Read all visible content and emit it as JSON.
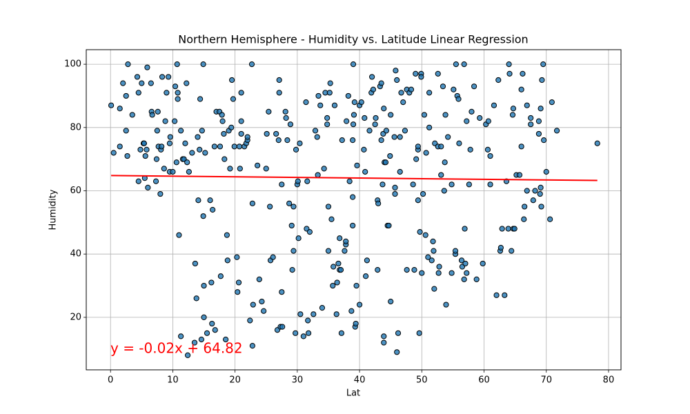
{
  "chart_data": {
    "type": "scatter",
    "title": "Northern Hemisphere - Humidity vs. Latitude Linear Regression",
    "x_label": "Lat",
    "y_label": "Humidity",
    "annotation": "y = -0.02x + 64.82",
    "xlim": [
      -3.9,
      82.0
    ],
    "ylim": [
      3.4,
      104.6
    ],
    "xticks": [
      0,
      10,
      20,
      30,
      40,
      50,
      60,
      70,
      80
    ],
    "yticks": [
      20,
      40,
      60,
      80,
      100
    ],
    "grid": true,
    "series": [
      {
        "color": "#1f77b4",
        "edgecolor": "black",
        "x": [
          0.1,
          0.5,
          1.5,
          1.5,
          2,
          2.5,
          2.5,
          2.7,
          2.8,
          3.5,
          4.3,
          4.5,
          4.5,
          4.8,
          5,
          5.3,
          5.4,
          5.5,
          5.6,
          5.8,
          5.9,
          6,
          6.5,
          6.6,
          6.7,
          7.3,
          7.4,
          7.5,
          7.6,
          7.7,
          8,
          8.1,
          8.2,
          8.3,
          8.6,
          8.8,
          9,
          9.3,
          9.5,
          9.6,
          9.5,
          10,
          10.3,
          10.4,
          10.6,
          10.7,
          10.8,
          10.8,
          11,
          11.3,
          11.3,
          11.6,
          11.8,
          12,
          12.2,
          12.3,
          12.4,
          12.6,
          13.1,
          13.5,
          13.6,
          13.8,
          14,
          14.1,
          14.3,
          14.4,
          14.6,
          14.7,
          14.9,
          14.9,
          15,
          15,
          15.2,
          15.5,
          16,
          16.2,
          16.3,
          16.4,
          16.7,
          16.8,
          17,
          17.5,
          17.6,
          17.7,
          17.9,
          18,
          18.2,
          18.3,
          18.5,
          18.7,
          18.8,
          19,
          19.2,
          19.4,
          19.5,
          19.7,
          19.9,
          20.3,
          20.4,
          20.6,
          20.7,
          20.8,
          21,
          21,
          21,
          21.5,
          21.8,
          22,
          22,
          22.4,
          22.7,
          22.8,
          22.9,
          22.8,
          23.6,
          23.9,
          24.3,
          24.6,
          25,
          25.1,
          25.4,
          25.7,
          25.6,
          26.1,
          26.6,
          26.8,
          27,
          27.1,
          27.1,
          27.3,
          27.5,
          27.5,
          27.6,
          28.1,
          28.2,
          28.4,
          28.7,
          28.9,
          29.1,
          29.2,
          29.4,
          29.4,
          29.7,
          29.8,
          30,
          30.1,
          30.2,
          30.4,
          30.5,
          31,
          31.4,
          31.5,
          31.6,
          31.7,
          31.8,
          32,
          32.6,
          32.9,
          33.2,
          33.3,
          33.4,
          33.7,
          34,
          34.3,
          34.5,
          34.8,
          34.8,
          35,
          35,
          35.2,
          35.3,
          35.5,
          35.7,
          35.8,
          36,
          36.3,
          36.4,
          36.6,
          36.8,
          36.8,
          37,
          37.1,
          37.2,
          37.6,
          37.8,
          37.8,
          37.9,
          38.2,
          38.4,
          38.7,
          38.9,
          38.9,
          38.9,
          39,
          39,
          39.1,
          39.2,
          39.3,
          39.4,
          39.5,
          39.6,
          40,
          40,
          40.3,
          40.7,
          40.8,
          40.9,
          41,
          41.2,
          41.6,
          41.9,
          42,
          42.2,
          42.5,
          42.6,
          42.9,
          42.9,
          43,
          43.3,
          43.5,
          43.5,
          43.8,
          43.7,
          43.9,
          43.9,
          43.9,
          44,
          44.2,
          44.3,
          44.5,
          44.7,
          44.9,
          45,
          45,
          45.6,
          45.8,
          45.7,
          45.7,
          46,
          46,
          46.2,
          46.5,
          46.5,
          46.7,
          47,
          47.3,
          47.6,
          47.6,
          48,
          48.3,
          48.6,
          48.8,
          49,
          49.1,
          49.4,
          49.4,
          49.4,
          49.6,
          49.7,
          49.9,
          49.9,
          50,
          50.2,
          50.4,
          50.6,
          50.7,
          51,
          51.2,
          51.2,
          51.6,
          51.9,
          51.8,
          52,
          52.1,
          52.6,
          52.6,
          52.7,
          52.8,
          53.1,
          53.1,
          53.4,
          53.6,
          53.7,
          53.8,
          53.9,
          54.2,
          54.8,
          54.8,
          55.1,
          55.4,
          55.4,
          55.5,
          55.7,
          55.9,
          56,
          56.4,
          56.5,
          56.8,
          56.8,
          56.9,
          57,
          57.2,
          57.2,
          57.6,
          57.8,
          58,
          58.4,
          58.8,
          59.3,
          59.8,
          60.3,
          60.6,
          61,
          60.7,
          61,
          61.6,
          62.3,
          62.6,
          62.7,
          62.9,
          62,
          63.3,
          63.6,
          63.9,
          64.1,
          64,
          64.4,
          64.6,
          64.7,
          64.7,
          64.9,
          65.2,
          65.7,
          66,
          66.2,
          66,
          66.4,
          66.5,
          66.9,
          66.9,
          67.5,
          67.5,
          67.9,
          68.2,
          68.8,
          68.8,
          69,
          69.1,
          69.1,
          69.2,
          69.3,
          69.5,
          69.6,
          70,
          70.6,
          70.9,
          71.7,
          78.2
        ],
        "values": [
          87,
          72,
          74,
          86,
          94,
          79,
          90,
          71,
          100,
          84,
          96,
          91,
          63,
          73,
          94,
          75,
          75,
          64,
          71,
          73,
          99,
          61,
          94,
          85,
          84,
          63,
          70,
          79,
          85,
          74,
          59,
          73,
          74,
          96,
          67,
          82,
          91,
          96,
          75,
          77,
          66,
          66,
          82,
          93,
          69,
          100,
          91,
          89,
          46,
          79,
          14,
          70,
          70,
          75,
          94,
          69,
          8,
          66,
          72,
          12,
          37,
          26,
          77,
          57,
          73,
          89,
          13,
          79,
          100,
          52,
          30,
          20,
          72,
          15,
          57,
          31,
          18,
          54,
          74,
          16,
          85,
          85,
          74,
          33,
          84,
          82,
          78,
          70,
          13,
          46,
          38,
          79,
          67,
          80,
          95,
          89,
          74,
          39,
          28,
          31,
          74,
          67,
          82,
          78,
          91,
          74,
          75,
          76,
          77,
          19,
          100,
          56,
          24,
          11,
          68,
          32,
          25,
          22,
          67,
          78,
          85,
          38,
          55,
          39,
          78,
          16,
          76,
          91,
          95,
          17,
          28,
          62,
          17,
          85,
          83,
          76,
          56,
          81,
          49,
          35,
          41,
          55,
          15,
          73,
          62,
          63,
          45,
          75,
          21,
          14,
          88,
          48,
          63,
          19,
          15,
          47,
          21,
          79,
          77,
          65,
          90,
          87,
          23,
          67,
          91,
          83,
          81,
          55,
          41,
          91,
          94,
          51,
          30,
          36,
          87,
          21,
          31,
          37,
          45,
          35,
          35,
          15,
          76,
          41,
          43,
          44,
          82,
          90,
          63,
          22,
          76,
          49,
          58,
          81,
          100,
          84,
          88,
          17,
          18,
          30,
          68,
          87,
          24,
          88,
          73,
          83,
          66,
          33,
          38,
          79,
          91,
          96,
          92,
          81,
          83,
          35,
          57,
          56,
          93,
          94,
          76,
          78,
          62,
          86,
          14,
          12,
          69,
          69,
          79,
          49,
          49,
          71,
          84,
          25,
          77,
          98,
          61,
          59,
          95,
          9,
          15,
          66,
          77,
          91,
          88,
          79,
          92,
          35,
          91,
          92,
          62,
          35,
          97,
          70,
          73,
          74,
          57,
          15,
          47,
          97,
          96,
          34,
          59,
          84,
          46,
          72,
          39,
          80,
          91,
          38,
          41,
          44,
          29,
          75,
          74,
          97,
          34,
          36,
          74,
          65,
          93,
          60,
          69,
          84,
          24,
          77,
          34,
          62,
          92,
          40,
          41,
          100,
          90,
          89,
          75,
          38,
          36,
          100,
          32,
          48,
          37,
          34,
          82,
          62,
          73,
          85,
          93,
          32,
          83,
          37,
          81,
          73,
          62,
          82,
          71,
          87,
          95,
          41,
          42,
          48,
          27,
          27,
          63,
          48,
          97,
          100,
          41,
          84,
          86,
          48,
          48,
          65,
          65,
          92,
          97,
          74,
          51,
          55,
          87,
          60,
          81,
          83,
          57,
          60,
          78,
          82,
          59,
          61,
          86,
          55,
          95,
          100,
          76,
          66,
          51,
          88,
          79,
          75
        ]
      }
    ],
    "regression_line": {
      "color": "red",
      "x": [
        0.1,
        78.2
      ],
      "y": [
        64.82,
        63.26
      ]
    }
  }
}
